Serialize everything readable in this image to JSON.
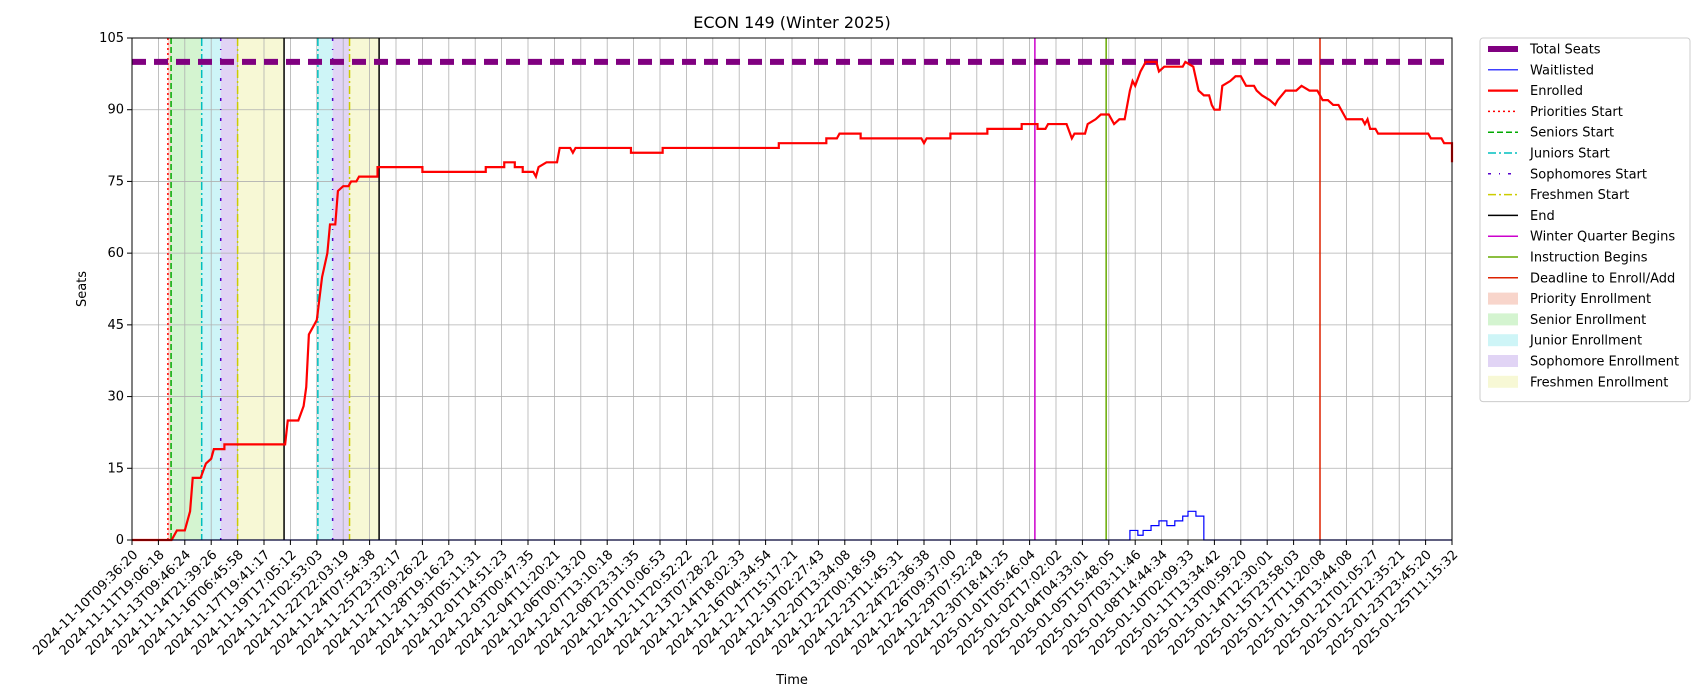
{
  "chart_data": {
    "type": "line",
    "title": "ECON 149 (Winter 2025)",
    "xlabel": "Time",
    "ylabel": "Seats",
    "ylim": [
      0,
      105
    ],
    "yticks": [
      0,
      15,
      30,
      45,
      60,
      75,
      90,
      105
    ],
    "grid": true,
    "legend_placement": "outside-right",
    "x_tick_labels": [
      "2024-11-10T09:36:20",
      "2024-11-11T19:06:18",
      "2024-11-13T09:46:24",
      "2024-11-14T21:39:26",
      "2024-11-16T06:45:58",
      "2024-11-17T19:41:17",
      "2024-11-19T17:05:12",
      "2024-11-21T02:53:03",
      "2024-11-22T22:03:19",
      "2024-11-24T07:54:38",
      "2024-11-25T23:32:17",
      "2024-11-27T09:26:22",
      "2024-11-28T19:16:23",
      "2024-11-30T05:11:31",
      "2024-12-01T14:51:23",
      "2024-12-03T00:47:35",
      "2024-12-04T11:20:21",
      "2024-12-06T00:13:20",
      "2024-12-07T13:10:18",
      "2024-12-08T23:31:35",
      "2024-12-10T10:06:53",
      "2024-12-11T20:52:22",
      "2024-12-13T07:28:22",
      "2024-12-14T18:02:33",
      "2024-12-16T04:34:54",
      "2024-12-17T15:17:21",
      "2024-12-19T02:27:43",
      "2024-12-20T13:34:08",
      "2024-12-22T00:18:59",
      "2024-12-23T11:45:31",
      "2024-12-24T22:36:38",
      "2024-12-26T09:37:00",
      "2024-12-29T07:52:28",
      "2024-12-30T18:41:25",
      "2025-01-01T05:46:04",
      "2025-01-02T17:02:02",
      "2025-01-04T04:33:01",
      "2025-01-05T15:48:05",
      "2025-01-07T03:11:46",
      "2025-01-08T14:44:34",
      "2025-01-10T02:09:33",
      "2025-01-11T13:34:42",
      "2025-01-13T00:59:20",
      "2025-01-14T12:30:01",
      "2025-01-15T23:58:03",
      "2025-01-17T11:20:08",
      "2025-01-19T13:44:08",
      "2025-01-21T01:05:27",
      "2025-01-22T12:35:21",
      "2025-01-23T23:45:20",
      "2025-01-25T11:15:32"
    ],
    "x_index_range": [
      0,
      50
    ],
    "series": [
      {
        "name": "Total Seats",
        "color": "#800080",
        "style": "dashed-thick",
        "points": [
          [
            0,
            100
          ],
          [
            50,
            100
          ]
        ]
      },
      {
        "name": "Waitlisted",
        "color": "#0000ff",
        "style": "solid-thin",
        "points": [
          [
            0,
            0
          ],
          [
            37.8,
            0
          ],
          [
            37.8,
            2
          ],
          [
            38.1,
            2
          ],
          [
            38.1,
            1
          ],
          [
            38.3,
            1
          ],
          [
            38.3,
            2
          ],
          [
            38.6,
            2
          ],
          [
            38.6,
            3
          ],
          [
            38.9,
            3
          ],
          [
            38.9,
            4
          ],
          [
            39.2,
            4
          ],
          [
            39.2,
            3
          ],
          [
            39.5,
            3
          ],
          [
            39.5,
            4
          ],
          [
            39.8,
            4
          ],
          [
            39.8,
            5
          ],
          [
            40.0,
            5
          ],
          [
            40.0,
            6
          ],
          [
            40.3,
            6
          ],
          [
            40.3,
            5
          ],
          [
            40.6,
            5
          ],
          [
            40.6,
            0
          ],
          [
            50,
            0
          ]
        ]
      },
      {
        "name": "Enrolled",
        "color": "#ff0000",
        "style": "solid-thick",
        "points": [
          [
            0,
            0
          ],
          [
            1.5,
            0
          ],
          [
            1.7,
            2
          ],
          [
            2.0,
            2
          ],
          [
            2.2,
            6
          ],
          [
            2.3,
            13
          ],
          [
            2.6,
            13
          ],
          [
            2.8,
            16
          ],
          [
            3.0,
            17
          ],
          [
            3.1,
            19
          ],
          [
            3.5,
            19
          ],
          [
            3.5,
            20
          ],
          [
            5.8,
            20
          ],
          [
            5.9,
            25
          ],
          [
            6.3,
            25
          ],
          [
            6.5,
            28
          ],
          [
            6.6,
            32
          ],
          [
            6.7,
            43
          ],
          [
            6.9,
            45
          ],
          [
            7.0,
            46
          ],
          [
            7.2,
            55
          ],
          [
            7.4,
            60
          ],
          [
            7.5,
            66
          ],
          [
            7.7,
            66
          ],
          [
            7.8,
            73
          ],
          [
            8.0,
            74
          ],
          [
            8.2,
            74
          ],
          [
            8.3,
            75
          ],
          [
            8.5,
            75
          ],
          [
            8.6,
            76
          ],
          [
            9.3,
            76
          ],
          [
            9.3,
            78
          ],
          [
            11.0,
            78
          ],
          [
            11.0,
            77
          ],
          [
            13.4,
            77
          ],
          [
            13.4,
            78
          ],
          [
            14.1,
            78
          ],
          [
            14.1,
            79
          ],
          [
            14.5,
            79
          ],
          [
            14.5,
            78
          ],
          [
            14.8,
            78
          ],
          [
            14.8,
            77
          ],
          [
            15.2,
            77
          ],
          [
            15.3,
            76
          ],
          [
            15.4,
            78
          ],
          [
            15.7,
            79
          ],
          [
            16.1,
            79
          ],
          [
            16.2,
            82
          ],
          [
            16.6,
            82
          ],
          [
            16.7,
            81
          ],
          [
            16.8,
            82
          ],
          [
            18.9,
            82
          ],
          [
            18.9,
            81
          ],
          [
            20.1,
            81
          ],
          [
            20.1,
            82
          ],
          [
            24.5,
            82
          ],
          [
            24.5,
            83
          ],
          [
            26.3,
            83
          ],
          [
            26.3,
            84
          ],
          [
            26.7,
            84
          ],
          [
            26.8,
            85
          ],
          [
            27.6,
            85
          ],
          [
            27.6,
            84
          ],
          [
            29.9,
            84
          ],
          [
            30.0,
            83
          ],
          [
            30.1,
            84
          ],
          [
            31.0,
            84
          ],
          [
            31.0,
            85
          ],
          [
            32.4,
            85
          ],
          [
            32.4,
            86
          ],
          [
            33.7,
            86
          ],
          [
            33.7,
            87
          ],
          [
            34.3,
            87
          ],
          [
            34.3,
            86
          ],
          [
            34.6,
            86
          ],
          [
            34.7,
            87
          ],
          [
            35.4,
            87
          ],
          [
            35.6,
            84
          ],
          [
            35.7,
            85
          ],
          [
            36.1,
            85
          ],
          [
            36.2,
            87
          ],
          [
            36.5,
            88
          ],
          [
            36.7,
            89
          ],
          [
            37.0,
            89
          ],
          [
            37.2,
            87
          ],
          [
            37.4,
            88
          ],
          [
            37.6,
            88
          ],
          [
            37.8,
            94
          ],
          [
            37.9,
            96
          ],
          [
            38.0,
            95
          ],
          [
            38.2,
            98
          ],
          [
            38.4,
            100
          ],
          [
            38.8,
            100
          ],
          [
            38.9,
            98
          ],
          [
            39.1,
            99
          ],
          [
            39.8,
            99
          ],
          [
            39.9,
            100
          ],
          [
            40.2,
            99
          ],
          [
            40.4,
            94
          ],
          [
            40.6,
            93
          ],
          [
            40.8,
            93
          ],
          [
            40.9,
            91
          ],
          [
            41.0,
            90
          ],
          [
            41.2,
            90
          ],
          [
            41.3,
            95
          ],
          [
            41.6,
            96
          ],
          [
            41.8,
            97
          ],
          [
            42.0,
            97
          ],
          [
            42.2,
            95
          ],
          [
            42.5,
            95
          ],
          [
            42.6,
            94
          ],
          [
            42.8,
            93
          ],
          [
            43.1,
            92
          ],
          [
            43.3,
            91
          ],
          [
            43.4,
            92
          ],
          [
            43.7,
            94
          ],
          [
            44.1,
            94
          ],
          [
            44.3,
            95
          ],
          [
            44.6,
            94
          ],
          [
            44.9,
            94
          ],
          [
            45.1,
            92
          ],
          [
            45.3,
            92
          ],
          [
            45.5,
            91
          ],
          [
            45.7,
            91
          ],
          [
            45.9,
            89
          ],
          [
            46.0,
            88
          ],
          [
            46.6,
            88
          ],
          [
            46.7,
            87
          ],
          [
            46.8,
            88
          ],
          [
            46.9,
            86
          ],
          [
            47.1,
            86
          ],
          [
            47.2,
            85
          ],
          [
            49.1,
            85
          ],
          [
            49.2,
            84
          ],
          [
            49.6,
            84
          ],
          [
            49.7,
            83
          ],
          [
            50.0,
            83
          ],
          [
            50.3,
            82
          ],
          [
            50.6,
            81
          ],
          [
            52.5,
            81
          ],
          [
            52.6,
            79
          ]
        ]
      }
    ],
    "markers": [
      {
        "name": "Priorities Start",
        "x": 1.36,
        "color": "#ff0000",
        "style": "dotted"
      },
      {
        "name": "Seniors Start",
        "x": 1.48,
        "color": "#00aa00",
        "style": "dashed"
      },
      {
        "name": "Juniors Start",
        "x": 2.64,
        "color": "#00bfbf",
        "style": "dashdot"
      },
      {
        "name": "Sophomores Start",
        "x": 3.36,
        "color": "#5500cc",
        "style": "loose-dashdot"
      },
      {
        "name": "Freshmen Start",
        "x": 4.0,
        "color": "#cccc00",
        "style": "dashdot"
      },
      {
        "name": "End",
        "x": 5.76,
        "color": "#000000",
        "style": "solid"
      },
      {
        "name": "Juniors Start",
        "x": 7.04,
        "color": "#00bfbf",
        "style": "dashdot",
        "legend": false
      },
      {
        "name": "Sophomores Start",
        "x": 7.6,
        "color": "#5500cc",
        "style": "loose-dashdot",
        "legend": false
      },
      {
        "name": "Freshmen Start",
        "x": 8.24,
        "color": "#cccc00",
        "style": "dashdot",
        "legend": false
      },
      {
        "name": "End",
        "x": 9.36,
        "color": "#000000",
        "style": "solid",
        "legend": false
      },
      {
        "name": "Winter Quarter Begins",
        "x": 34.2,
        "color": "#cc00cc",
        "style": "solid"
      },
      {
        "name": "Instruction Begins",
        "x": 36.9,
        "color": "#66aa00",
        "style": "solid"
      },
      {
        "name": "Deadline to Enroll/Add",
        "x": 45.0,
        "color": "#dd2200",
        "style": "solid"
      }
    ],
    "bands": [
      {
        "name": "Priority Enrollment",
        "x0": 1.36,
        "x1": 1.48,
        "color": "#f4b9a8"
      },
      {
        "name": "Senior Enrollment",
        "x0": 1.48,
        "x1": 2.64,
        "color": "#b8ecb0"
      },
      {
        "name": "Junior Enrollment",
        "x0": 2.64,
        "x1": 3.36,
        "color": "#aeeef2"
      },
      {
        "name": "Sophomore Enrollment",
        "x0": 3.36,
        "x1": 4.0,
        "color": "#cdb7ee"
      },
      {
        "name": "Freshmen Enrollment",
        "x0": 4.0,
        "x1": 5.76,
        "color": "#f1f3b9"
      },
      {
        "name": "Junior Enrollment",
        "x0": 7.04,
        "x1": 7.6,
        "color": "#aeeef2",
        "legend": false
      },
      {
        "name": "Sophomore Enrollment",
        "x0": 7.6,
        "x1": 8.24,
        "color": "#cdb7ee",
        "legend": false
      },
      {
        "name": "Freshmen Enrollment",
        "x0": 8.24,
        "x1": 9.36,
        "color": "#f1f3b9",
        "legend": false
      }
    ]
  }
}
